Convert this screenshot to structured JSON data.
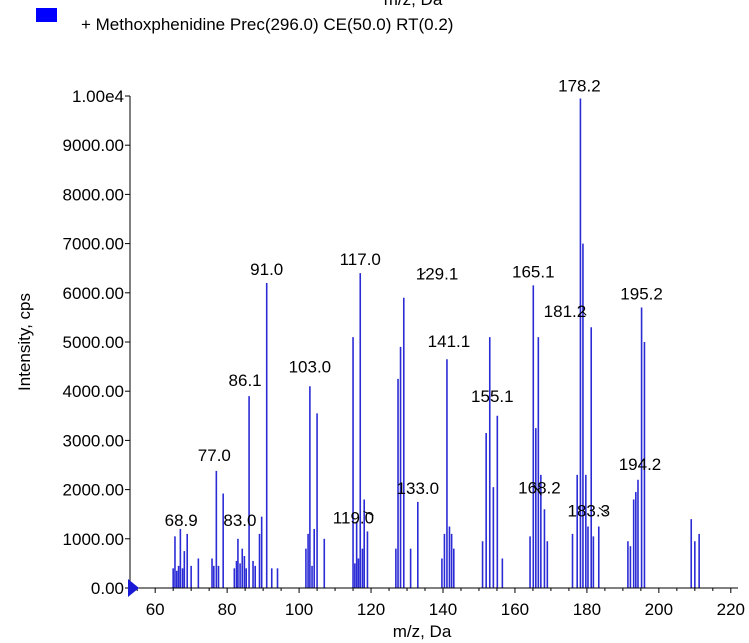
{
  "chart_data": {
    "type": "bar",
    "top_cut_label": "m/z, Da",
    "legend": {
      "text": "+ Methoxphenidine Prec(296.0) CE(50.0) RT(0.2)",
      "swatch_color": "#0000ff",
      "placement": "top-left"
    },
    "xlabel": "m/z, Da",
    "ylabel": "Intensity, cps",
    "xlim": [
      53,
      222
    ],
    "ylim": [
      0,
      10000
    ],
    "x_ticks": [
      60,
      80,
      100,
      120,
      140,
      160,
      180,
      200,
      220
    ],
    "y_ticks": [
      {
        "value": 0,
        "label": "0.00"
      },
      {
        "value": 1000,
        "label": "1000.00"
      },
      {
        "value": 2000,
        "label": "2000.00"
      },
      {
        "value": 3000,
        "label": "3000.00"
      },
      {
        "value": 4000,
        "label": "4000.00"
      },
      {
        "value": 5000,
        "label": "5000.00"
      },
      {
        "value": 6000,
        "label": "6000.00"
      },
      {
        "value": 7000,
        "label": "7000.00"
      },
      {
        "value": 8000,
        "label": "8000.00"
      },
      {
        "value": 9000,
        "label": "9000.00"
      },
      {
        "value": 10000,
        "label": "1.00e4"
      }
    ],
    "bar_color": "#2b2bd6",
    "peaks": [
      {
        "x": 65.0,
        "y": 400
      },
      {
        "x": 65.5,
        "y": 1050
      },
      {
        "x": 66.0,
        "y": 350
      },
      {
        "x": 66.5,
        "y": 450
      },
      {
        "x": 67.0,
        "y": 1200
      },
      {
        "x": 67.6,
        "y": 400
      },
      {
        "x": 68.1,
        "y": 750
      },
      {
        "x": 68.9,
        "y": 1100
      },
      {
        "x": 70.0,
        "y": 450
      },
      {
        "x": 72.0,
        "y": 600
      },
      {
        "x": 75.8,
        "y": 600
      },
      {
        "x": 76.3,
        "y": 450
      },
      {
        "x": 77.0,
        "y": 2380
      },
      {
        "x": 77.6,
        "y": 450
      },
      {
        "x": 78.9,
        "y": 1920
      },
      {
        "x": 82.0,
        "y": 400
      },
      {
        "x": 82.6,
        "y": 550
      },
      {
        "x": 83.0,
        "y": 1000
      },
      {
        "x": 83.6,
        "y": 500
      },
      {
        "x": 84.2,
        "y": 800
      },
      {
        "x": 84.8,
        "y": 650
      },
      {
        "x": 85.3,
        "y": 400
      },
      {
        "x": 86.1,
        "y": 3900
      },
      {
        "x": 87.2,
        "y": 550
      },
      {
        "x": 87.8,
        "y": 450
      },
      {
        "x": 89.0,
        "y": 1100
      },
      {
        "x": 89.6,
        "y": 1450
      },
      {
        "x": 91.0,
        "y": 6200
      },
      {
        "x": 92.4,
        "y": 400
      },
      {
        "x": 94.0,
        "y": 400
      },
      {
        "x": 101.9,
        "y": 800
      },
      {
        "x": 102.5,
        "y": 1100
      },
      {
        "x": 103.0,
        "y": 4100
      },
      {
        "x": 103.6,
        "y": 450
      },
      {
        "x": 104.2,
        "y": 1200
      },
      {
        "x": 105.0,
        "y": 3550
      },
      {
        "x": 107.0,
        "y": 1000
      },
      {
        "x": 115.0,
        "y": 5100
      },
      {
        "x": 115.5,
        "y": 500
      },
      {
        "x": 116.0,
        "y": 1350
      },
      {
        "x": 116.5,
        "y": 600
      },
      {
        "x": 117.0,
        "y": 6400
      },
      {
        "x": 117.6,
        "y": 800
      },
      {
        "x": 118.1,
        "y": 1800
      },
      {
        "x": 119.0,
        "y": 1150
      },
      {
        "x": 126.9,
        "y": 800
      },
      {
        "x": 127.5,
        "y": 4250
      },
      {
        "x": 128.2,
        "y": 4900
      },
      {
        "x": 129.1,
        "y": 5900
      },
      {
        "x": 131.0,
        "y": 800
      },
      {
        "x": 133.0,
        "y": 1750
      },
      {
        "x": 139.7,
        "y": 600
      },
      {
        "x": 140.4,
        "y": 1100
      },
      {
        "x": 141.1,
        "y": 4650
      },
      {
        "x": 141.8,
        "y": 1250
      },
      {
        "x": 142.4,
        "y": 1100
      },
      {
        "x": 143.0,
        "y": 800
      },
      {
        "x": 151.0,
        "y": 950
      },
      {
        "x": 152.0,
        "y": 3150
      },
      {
        "x": 153.0,
        "y": 5100
      },
      {
        "x": 154.0,
        "y": 2050
      },
      {
        "x": 155.1,
        "y": 3500
      },
      {
        "x": 156.5,
        "y": 600
      },
      {
        "x": 164.2,
        "y": 1050
      },
      {
        "x": 165.1,
        "y": 6150
      },
      {
        "x": 165.8,
        "y": 3250
      },
      {
        "x": 166.5,
        "y": 5100
      },
      {
        "x": 167.2,
        "y": 2300
      },
      {
        "x": 168.2,
        "y": 1600
      },
      {
        "x": 169.0,
        "y": 950
      },
      {
        "x": 176.0,
        "y": 1100
      },
      {
        "x": 177.3,
        "y": 2300
      },
      {
        "x": 178.2,
        "y": 9950
      },
      {
        "x": 178.9,
        "y": 7000
      },
      {
        "x": 179.7,
        "y": 2300
      },
      {
        "x": 180.3,
        "y": 1250
      },
      {
        "x": 181.2,
        "y": 5300
      },
      {
        "x": 181.8,
        "y": 1050
      },
      {
        "x": 183.3,
        "y": 1250
      },
      {
        "x": 191.4,
        "y": 950
      },
      {
        "x": 192.1,
        "y": 850
      },
      {
        "x": 193.0,
        "y": 1800
      },
      {
        "x": 193.6,
        "y": 1950
      },
      {
        "x": 194.2,
        "y": 2200
      },
      {
        "x": 195.2,
        "y": 5700
      },
      {
        "x": 196.0,
        "y": 5000
      },
      {
        "x": 209.0,
        "y": 1400
      },
      {
        "x": 210.0,
        "y": 950
      },
      {
        "x": 211.2,
        "y": 1100
      }
    ],
    "annotations": [
      {
        "label": "178.2",
        "x": 178.2
      },
      {
        "label": "91.0",
        "x": 91.0
      },
      {
        "label": "117.0",
        "x": 117.0
      },
      {
        "label": "129.1",
        "x": 129.1
      },
      {
        "label": "165.1",
        "x": 165.1
      },
      {
        "label": "195.2",
        "x": 195.2
      },
      {
        "label": "181.2",
        "x": 181.2
      },
      {
        "label": "141.1",
        "x": 141.1
      },
      {
        "label": "86.1",
        "x": 86.1
      },
      {
        "label": "103.0",
        "x": 103.0
      },
      {
        "label": "155.1",
        "x": 155.1
      },
      {
        "label": "77.0",
        "x": 77.0
      },
      {
        "label": "168.2",
        "x": 168.2
      },
      {
        "label": "194.2",
        "x": 194.2
      },
      {
        "label": "133.0",
        "x": 133.0
      },
      {
        "label": "183.3",
        "x": 183.3
      },
      {
        "label": "68.9",
        "x": 68.9
      },
      {
        "label": "83.0",
        "x": 83.0
      },
      {
        "label": "119.0",
        "x": 119.0
      }
    ]
  }
}
